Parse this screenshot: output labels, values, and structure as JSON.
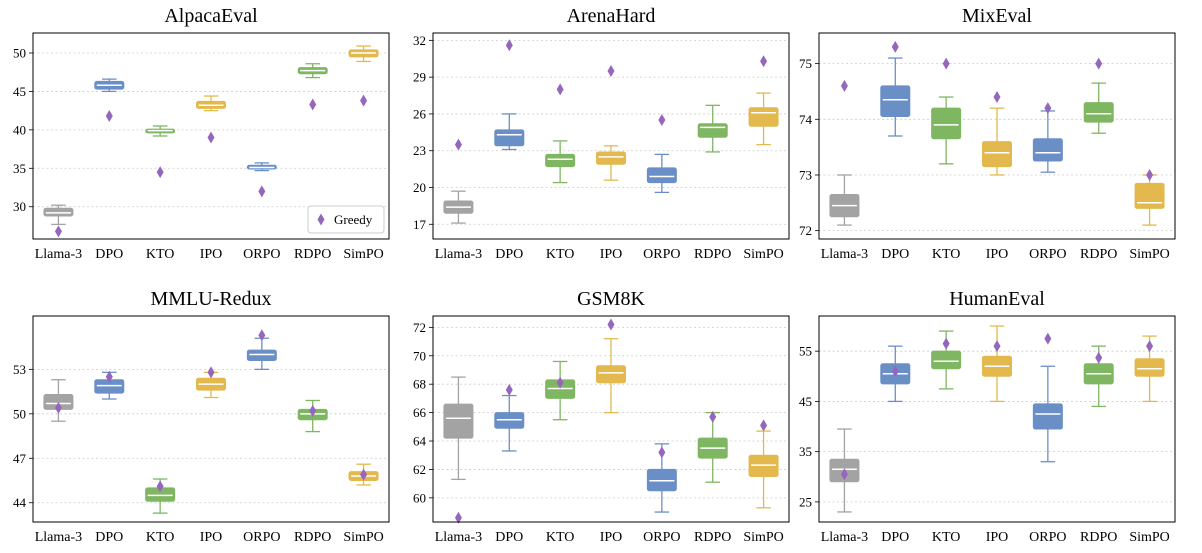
{
  "figure": {
    "legend_label": "Greedy",
    "colors": {
      "Llama-3": "#a3a3a3",
      "DPO": "#6a8fc7",
      "KTO": "#7fb662",
      "IPO": "#e3b94e",
      "ORPO": "#6a8fc7",
      "RDPO": "#7fb662",
      "SimPO": "#e3b94e",
      "greedy_marker": "#9467bd"
    }
  },
  "chart_data": [
    {
      "type": "box",
      "title": "AlpacaEval",
      "categories": [
        "Llama-3",
        "DPO",
        "KTO",
        "IPO",
        "ORPO",
        "RDPO",
        "SimPO"
      ],
      "ylim": [
        25.8,
        52.6
      ],
      "yticks": [
        30,
        35,
        40,
        45,
        50
      ],
      "grid": true,
      "legend": "bottom-right",
      "boxes": [
        {
          "whislo": 27.7,
          "q1": 28.8,
          "med": 29.2,
          "q3": 29.8,
          "whishi": 30.2
        },
        {
          "whislo": 45.0,
          "q1": 45.3,
          "med": 45.8,
          "q3": 46.3,
          "whishi": 46.6
        },
        {
          "whislo": 39.2,
          "q1": 39.6,
          "med": 39.9,
          "q3": 40.1,
          "whishi": 40.5
        },
        {
          "whislo": 42.5,
          "q1": 42.8,
          "med": 43.2,
          "q3": 43.7,
          "whishi": 44.4
        },
        {
          "whislo": 34.7,
          "q1": 34.9,
          "med": 35.1,
          "q3": 35.4,
          "whishi": 35.7
        },
        {
          "whislo": 46.8,
          "q1": 47.3,
          "med": 47.7,
          "q3": 48.1,
          "whishi": 48.6
        },
        {
          "whislo": 48.9,
          "q1": 49.5,
          "med": 50.0,
          "q3": 50.4,
          "whishi": 50.9
        }
      ],
      "greedy": [
        26.8,
        41.8,
        34.5,
        39.0,
        32.0,
        43.3,
        43.8
      ]
    },
    {
      "type": "box",
      "title": "ArenaHard",
      "categories": [
        "Llama-3",
        "DPO",
        "KTO",
        "IPO",
        "ORPO",
        "RDPO",
        "SimPO"
      ],
      "ylim": [
        15.8,
        32.6
      ],
      "yticks": [
        17,
        20,
        23,
        26,
        29,
        32
      ],
      "grid": true,
      "boxes": [
        {
          "whislo": 17.1,
          "q1": 17.9,
          "med": 18.4,
          "q3": 18.9,
          "whishi": 19.7
        },
        {
          "whislo": 23.1,
          "q1": 23.4,
          "med": 24.3,
          "q3": 24.7,
          "whishi": 26.0
        },
        {
          "whislo": 20.4,
          "q1": 21.7,
          "med": 22.3,
          "q3": 22.7,
          "whishi": 23.8
        },
        {
          "whislo": 20.6,
          "q1": 21.9,
          "med": 22.5,
          "q3": 22.9,
          "whishi": 23.4
        },
        {
          "whislo": 19.6,
          "q1": 20.4,
          "med": 20.9,
          "q3": 21.6,
          "whishi": 22.7
        },
        {
          "whislo": 22.9,
          "q1": 24.1,
          "med": 24.9,
          "q3": 25.2,
          "whishi": 26.7
        },
        {
          "whislo": 23.5,
          "q1": 25.0,
          "med": 26.1,
          "q3": 26.5,
          "whishi": 27.7
        }
      ],
      "greedy": [
        23.5,
        31.6,
        28.0,
        29.5,
        25.5,
        null,
        30.3
      ]
    },
    {
      "type": "box",
      "title": "MixEval",
      "categories": [
        "Llama-3",
        "DPO",
        "KTO",
        "IPO",
        "ORPO",
        "RDPO",
        "SimPO"
      ],
      "ylim": [
        71.85,
        75.55
      ],
      "yticks": [
        72,
        73,
        74,
        75
      ],
      "grid": true,
      "boxes": [
        {
          "whislo": 72.1,
          "q1": 72.25,
          "med": 72.45,
          "q3": 72.65,
          "whishi": 73.0
        },
        {
          "whislo": 73.7,
          "q1": 74.05,
          "med": 74.35,
          "q3": 74.6,
          "whishi": 75.1
        },
        {
          "whislo": 73.2,
          "q1": 73.65,
          "med": 73.9,
          "q3": 74.2,
          "whishi": 74.4
        },
        {
          "whislo": 73.0,
          "q1": 73.15,
          "med": 73.4,
          "q3": 73.6,
          "whishi": 74.2
        },
        {
          "whislo": 73.05,
          "q1": 73.25,
          "med": 73.4,
          "q3": 73.65,
          "whishi": 74.15
        },
        {
          "whislo": 73.75,
          "q1": 73.95,
          "med": 74.1,
          "q3": 74.3,
          "whishi": 74.65
        },
        {
          "whislo": 72.1,
          "q1": 72.4,
          "med": 72.5,
          "q3": 72.85,
          "whishi": 73.0
        }
      ],
      "greedy": [
        74.6,
        75.3,
        75.0,
        74.4,
        74.2,
        75.0,
        73.0
      ]
    },
    {
      "type": "box",
      "title": "MMLU-Redux",
      "categories": [
        "Llama-3",
        "DPO",
        "KTO",
        "IPO",
        "ORPO",
        "RDPO",
        "SimPO"
      ],
      "ylim": [
        42.7,
        56.6
      ],
      "yticks": [
        44,
        47,
        50,
        53
      ],
      "grid": true,
      "boxes": [
        {
          "whislo": 49.5,
          "q1": 50.3,
          "med": 50.7,
          "q3": 51.3,
          "whishi": 52.3
        },
        {
          "whislo": 51.0,
          "q1": 51.4,
          "med": 51.9,
          "q3": 52.3,
          "whishi": 52.8
        },
        {
          "whislo": 43.3,
          "q1": 44.1,
          "med": 44.5,
          "q3": 45.0,
          "whishi": 45.6
        },
        {
          "whislo": 51.1,
          "q1": 51.6,
          "med": 52.0,
          "q3": 52.4,
          "whishi": 52.8
        },
        {
          "whislo": 53.0,
          "q1": 53.6,
          "med": 54.0,
          "q3": 54.3,
          "whishi": 55.1
        },
        {
          "whislo": 48.8,
          "q1": 49.6,
          "med": 50.0,
          "q3": 50.3,
          "whishi": 50.9
        },
        {
          "whislo": 45.2,
          "q1": 45.5,
          "med": 45.8,
          "q3": 46.1,
          "whishi": 46.6
        }
      ],
      "greedy": [
        50.4,
        52.5,
        45.1,
        52.8,
        55.3,
        50.2,
        45.9
      ]
    },
    {
      "type": "box",
      "title": "GSM8K",
      "categories": [
        "Llama-3",
        "DPO",
        "KTO",
        "IPO",
        "ORPO",
        "RDPO",
        "SimPO"
      ],
      "ylim": [
        58.3,
        72.8
      ],
      "yticks": [
        60,
        62,
        64,
        66,
        68,
        70,
        72
      ],
      "grid": true,
      "boxes": [
        {
          "whislo": 61.3,
          "q1": 64.2,
          "med": 65.6,
          "q3": 66.6,
          "whishi": 68.5
        },
        {
          "whislo": 63.3,
          "q1": 64.9,
          "med": 65.5,
          "q3": 66.0,
          "whishi": 67.2
        },
        {
          "whislo": 65.5,
          "q1": 67.0,
          "med": 67.7,
          "q3": 68.3,
          "whishi": 69.6
        },
        {
          "whislo": 66.0,
          "q1": 68.1,
          "med": 68.8,
          "q3": 69.3,
          "whishi": 71.2
        },
        {
          "whislo": 59.0,
          "q1": 60.5,
          "med": 61.2,
          "q3": 62.0,
          "whishi": 63.8
        },
        {
          "whislo": 61.1,
          "q1": 62.8,
          "med": 63.5,
          "q3": 64.2,
          "whishi": 66.0
        },
        {
          "whislo": 59.3,
          "q1": 61.5,
          "med": 62.3,
          "q3": 63.0,
          "whishi": 64.7
        }
      ],
      "greedy": [
        58.6,
        67.6,
        68.1,
        72.2,
        63.2,
        65.7,
        65.1
      ]
    },
    {
      "type": "box",
      "title": "HumanEval",
      "categories": [
        "Llama-3",
        "DPO",
        "KTO",
        "IPO",
        "ORPO",
        "RDPO",
        "SimPO"
      ],
      "ylim": [
        21.0,
        62.0
      ],
      "yticks": [
        25,
        35,
        45,
        55
      ],
      "grid": true,
      "boxes": [
        {
          "whislo": 23.0,
          "q1": 29.0,
          "med": 31.5,
          "q3": 33.5,
          "whishi": 39.5
        },
        {
          "whislo": 45.0,
          "q1": 48.5,
          "med": 50.5,
          "q3": 52.5,
          "whishi": 56.0
        },
        {
          "whislo": 47.5,
          "q1": 51.5,
          "med": 53.0,
          "q3": 55.0,
          "whishi": 59.0
        },
        {
          "whislo": 45.0,
          "q1": 50.0,
          "med": 52.0,
          "q3": 54.0,
          "whishi": 60.0
        },
        {
          "whislo": 33.0,
          "q1": 39.5,
          "med": 42.5,
          "q3": 44.5,
          "whishi": 52.0
        },
        {
          "whislo": 44.0,
          "q1": 48.5,
          "med": 50.5,
          "q3": 52.5,
          "whishi": 56.0
        },
        {
          "whislo": 45.0,
          "q1": 50.0,
          "med": 51.5,
          "q3": 53.5,
          "whishi": 58.0
        }
      ],
      "greedy": [
        30.5,
        51.0,
        56.5,
        56.0,
        57.5,
        53.7,
        56.0
      ]
    }
  ]
}
